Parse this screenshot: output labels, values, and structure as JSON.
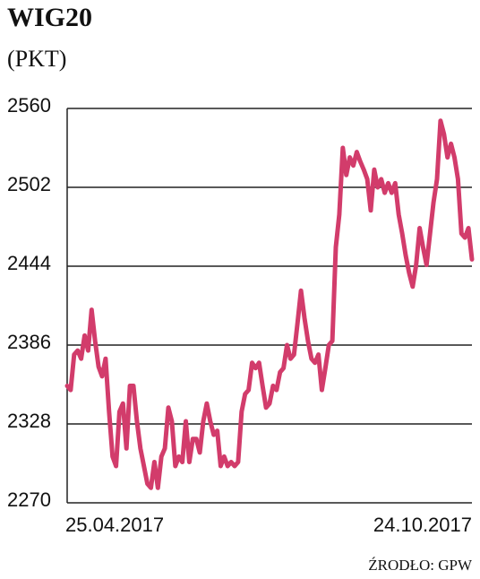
{
  "chart_data": {
    "type": "line",
    "title": "WIG20",
    "subtitle": "(PKT)",
    "source": "ŹRODŁO: GPW",
    "categories": [
      "25.04.2017",
      null,
      null,
      null,
      null,
      null,
      null,
      null,
      null,
      null,
      null,
      null,
      null,
      null,
      null,
      null,
      null,
      null,
      null,
      null,
      null,
      null,
      null,
      null,
      null,
      null,
      null,
      null,
      null,
      null,
      null,
      null,
      null,
      null,
      null,
      null,
      null,
      null,
      null,
      null,
      null,
      null,
      null,
      null,
      null,
      null,
      null,
      null,
      null,
      null,
      null,
      null,
      null,
      null,
      null,
      null,
      null,
      null,
      null,
      null,
      null,
      null,
      null,
      null,
      null,
      null,
      null,
      null,
      null,
      null,
      null,
      null,
      null,
      null,
      null,
      null,
      null,
      null,
      null,
      null,
      null,
      null,
      null,
      null,
      null,
      null,
      null,
      null,
      null,
      null,
      null,
      null,
      null,
      null,
      null,
      null,
      null,
      null,
      null,
      null,
      null,
      null,
      null,
      null,
      null,
      null,
      null,
      null,
      null,
      null,
      null,
      null,
      null,
      null,
      null,
      null,
      "24.10.2017"
    ],
    "series": [
      {
        "name": "WIG20",
        "color": "#d23c6b",
        "values": [
          2356,
          2353,
          2379,
          2382,
          2376,
          2393,
          2382,
          2412,
          2389,
          2370,
          2363,
          2376,
          2337,
          2304,
          2297,
          2337,
          2343,
          2310,
          2356,
          2356,
          2330,
          2310,
          2297,
          2284,
          2281,
          2300,
          2281,
          2304,
          2310,
          2340,
          2330,
          2297,
          2304,
          2300,
          2330,
          2300,
          2317,
          2317,
          2307,
          2330,
          2343,
          2330,
          2320,
          2323,
          2297,
          2304,
          2297,
          2300,
          2297,
          2300,
          2337,
          2350,
          2353,
          2373,
          2369,
          2373,
          2356,
          2340,
          2343,
          2356,
          2353,
          2366,
          2369,
          2386,
          2376,
          2379,
          2402,
          2426,
          2406,
          2389,
          2376,
          2373,
          2379,
          2353,
          2369,
          2386,
          2389,
          2458,
          2482,
          2531,
          2511,
          2524,
          2518,
          2528,
          2521,
          2515,
          2508,
          2485,
          2515,
          2502,
          2508,
          2498,
          2505,
          2498,
          2505,
          2482,
          2468,
          2452,
          2439,
          2429,
          2445,
          2472,
          2458,
          2445,
          2468,
          2491,
          2508,
          2551,
          2541,
          2524,
          2534,
          2524,
          2508,
          2468,
          2465,
          2472,
          2449
        ]
      }
    ],
    "ylim": [
      2270,
      2560
    ],
    "yticks": [
      2270,
      2328,
      2386,
      2444,
      2502,
      2560
    ],
    "grid": true
  }
}
